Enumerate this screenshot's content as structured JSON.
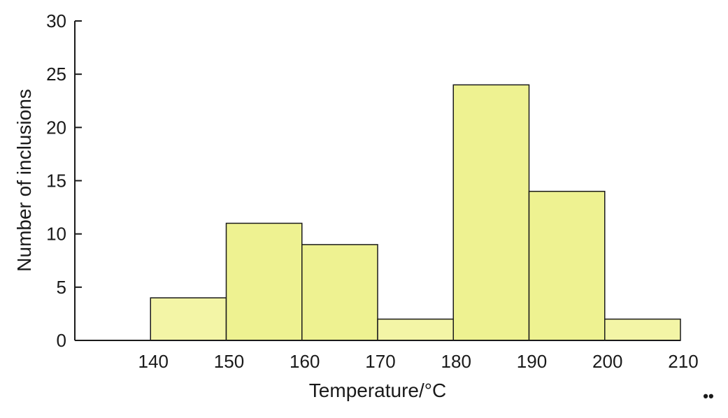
{
  "chart_data": {
    "type": "bar",
    "bins": [
      {
        "x0": 140,
        "x1": 150,
        "value": 4
      },
      {
        "x0": 150,
        "x1": 160,
        "value": 11
      },
      {
        "x0": 160,
        "x1": 170,
        "value": 9
      },
      {
        "x0": 170,
        "x1": 180,
        "value": 2
      },
      {
        "x0": 180,
        "x1": 190,
        "value": 24
      },
      {
        "x0": 190,
        "x1": 200,
        "value": 14
      },
      {
        "x0": 200,
        "x1": 210,
        "value": 2
      }
    ],
    "xlabel": "Temperature/°C",
    "ylabel": "Number of inclusions",
    "xlim": [
      130,
      210
    ],
    "ylim": [
      0,
      30
    ],
    "xticks": [
      140,
      150,
      160,
      170,
      180,
      190,
      200,
      210
    ],
    "yticks": [
      0,
      5,
      10,
      15,
      20,
      25,
      30
    ],
    "grid": false,
    "colors": {
      "bar_fill": "#eef291",
      "bar_fill_light": "#f3f5a6",
      "axis": "#1a1a1a"
    }
  },
  "footer_mark": "••"
}
